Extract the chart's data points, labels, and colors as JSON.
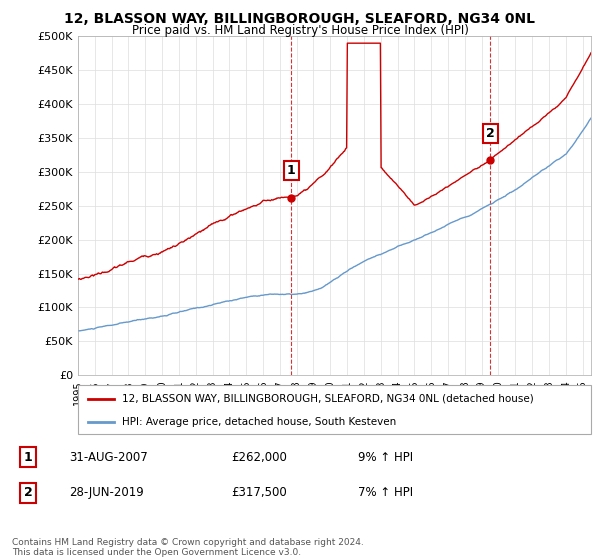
{
  "title": "12, BLASSON WAY, BILLINGBOROUGH, SLEAFORD, NG34 0NL",
  "subtitle": "Price paid vs. HM Land Registry's House Price Index (HPI)",
  "ylabel_ticks": [
    "£0",
    "£50K",
    "£100K",
    "£150K",
    "£200K",
    "£250K",
    "£300K",
    "£350K",
    "£400K",
    "£450K",
    "£500K"
  ],
  "ytick_values": [
    0,
    50000,
    100000,
    150000,
    200000,
    250000,
    300000,
    350000,
    400000,
    450000,
    500000
  ],
  "xlim_start": 1995.0,
  "xlim_end": 2025.5,
  "ylim": [
    0,
    500000
  ],
  "hpi_color": "#6699cc",
  "price_color": "#cc0000",
  "sale1_x": 2007.667,
  "sale1_y": 262000,
  "sale1_label": "1",
  "sale2_x": 2019.5,
  "sale2_y": 317500,
  "sale2_label": "2",
  "legend_line1": "12, BLASSON WAY, BILLINGBOROUGH, SLEAFORD, NG34 0NL (detached house)",
  "legend_line2": "HPI: Average price, detached house, South Kesteven",
  "footnote": "Contains HM Land Registry data © Crown copyright and database right 2024.\nThis data is licensed under the Open Government Licence v3.0.",
  "background_color": "#ffffff",
  "plot_bg_color": "#ffffff",
  "grid_color": "#dddddd"
}
